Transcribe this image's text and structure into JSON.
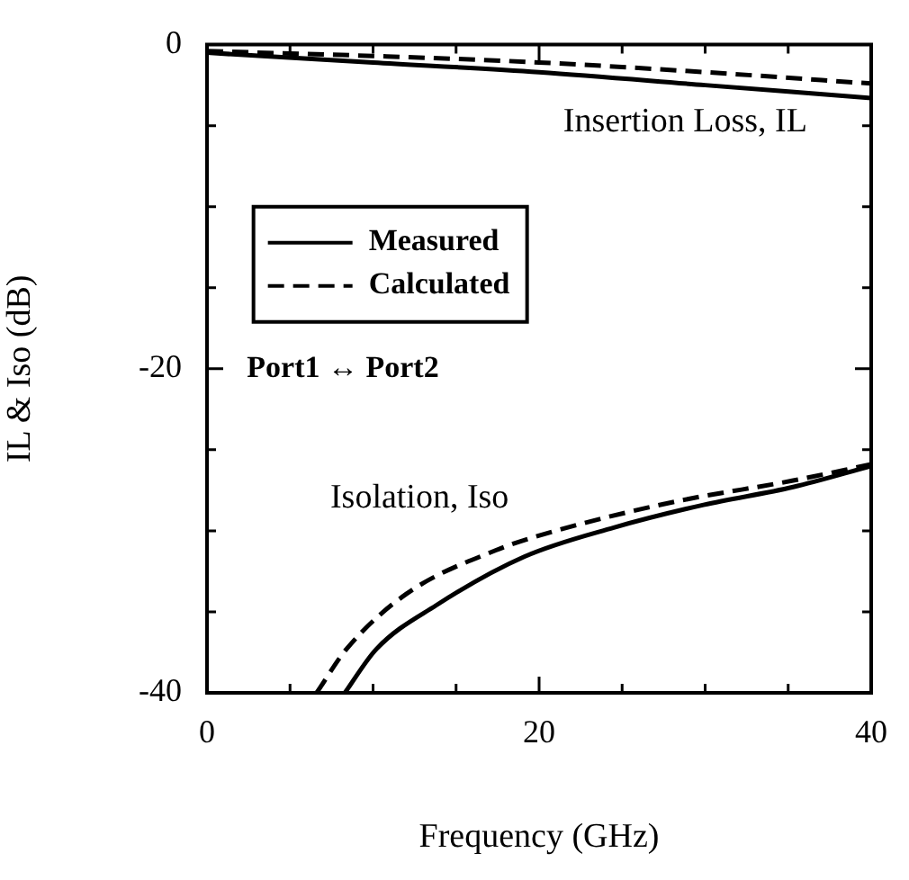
{
  "chart_data": {
    "type": "line",
    "xlabel": "Frequency (GHz)",
    "ylabel": "IL & Iso (dB)",
    "xlim": [
      0,
      40
    ],
    "ylim": [
      -40,
      0
    ],
    "xticks": [
      0,
      {
        "value": 5,
        "label": null
      },
      {
        "value": 10,
        "label": null
      },
      {
        "value": 15,
        "label": null
      },
      20,
      {
        "value": 25,
        "label": null
      },
      {
        "value": 30,
        "label": null
      },
      {
        "value": 35,
        "label": null
      },
      40
    ],
    "yticks": [
      -40,
      {
        "value": -35,
        "label": null
      },
      {
        "value": -30,
        "label": null
      },
      {
        "value": -25,
        "label": null
      },
      -20,
      {
        "value": -15,
        "label": null
      },
      {
        "value": -10,
        "label": null
      },
      {
        "value": -5,
        "label": null
      },
      0
    ],
    "grid": false,
    "legend": "top left",
    "marker": "none",
    "series": [
      {
        "name": "Measured",
        "color": "#000000",
        "line_style": "solid",
        "x": [
          0,
          10,
          20,
          30,
          40
        ],
        "values": [
          -0.5,
          -1.1,
          -1.7,
          -2.5,
          -3.3
        ]
      },
      {
        "name": "Calculated",
        "color": "#000000",
        "line_style": "dashed",
        "x": [
          0,
          10,
          20,
          30,
          40
        ],
        "values": [
          -0.4,
          -0.7,
          -1.1,
          -1.7,
          -2.4
        ]
      },
      {
        "color": "#000000",
        "line_style": "solid",
        "x": [
          8.3,
          10.2,
          13.8,
          19.1,
          24.5,
          29.9,
          35.3,
          40
        ],
        "values": [
          -40,
          -37.3,
          -34.6,
          -31.6,
          -29.8,
          -28.4,
          -27.3,
          -26
        ]
      },
      {
        "color": "#000000",
        "line_style": "dashed",
        "x": [
          6.6,
          8.4,
          12,
          17.4,
          21,
          28.2,
          35.3,
          40
        ],
        "values": [
          -40,
          -37.3,
          -33.9,
          -31.2,
          -30,
          -28.2,
          -26.9,
          -25.9
        ]
      }
    ],
    "annotations": [
      "Insertion Loss, IL",
      "Isolation, Iso",
      "Port1 ↔ Port2"
    ]
  }
}
